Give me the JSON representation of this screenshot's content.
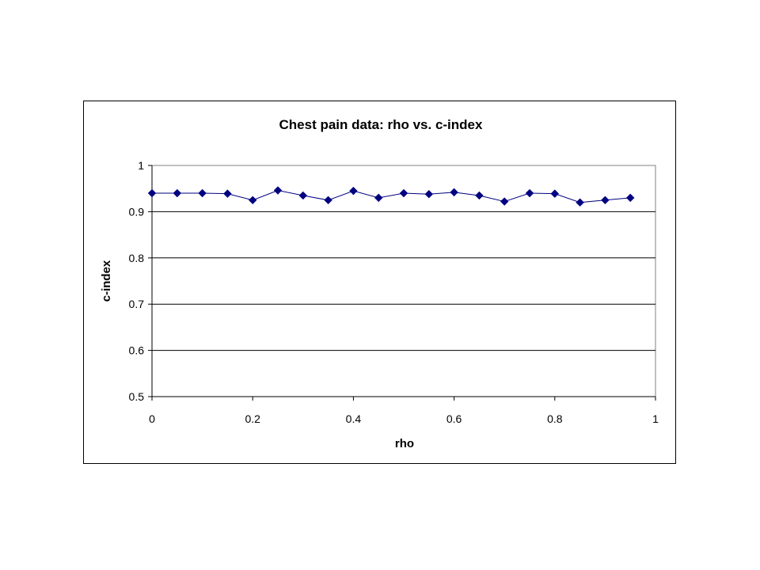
{
  "chart_data": {
    "type": "line",
    "title": "Chest pain data: rho vs. c-index",
    "xlabel": "rho",
    "ylabel": "c-index",
    "xlim": [
      0,
      1
    ],
    "ylim": [
      0.5,
      1
    ],
    "xticks": [
      0,
      0.2,
      0.4,
      0.6,
      0.8,
      1
    ],
    "xtick_labels": [
      "0",
      "0.2",
      "0.4",
      "0.6",
      "0.8",
      "1"
    ],
    "yticks": [
      0.5,
      0.6,
      0.7,
      0.8,
      0.9,
      1
    ],
    "ytick_labels": [
      "0.5",
      "0.6",
      "0.7",
      "0.8",
      "0.9",
      "1"
    ],
    "grid": "horizontal",
    "legend": "none",
    "series": [
      {
        "color": "#000080",
        "marker": "diamond",
        "x": [
          0,
          0.05,
          0.1,
          0.15,
          0.2,
          0.25,
          0.3,
          0.35,
          0.4,
          0.45,
          0.5,
          0.55,
          0.6,
          0.65,
          0.7,
          0.75,
          0.8,
          0.85,
          0.9,
          0.95
        ],
        "y": [
          0.94,
          0.94,
          0.94,
          0.939,
          0.925,
          0.946,
          0.935,
          0.925,
          0.945,
          0.93,
          0.94,
          0.938,
          0.942,
          0.935,
          0.922,
          0.94,
          0.939,
          0.92,
          0.925,
          0.93
        ]
      }
    ]
  }
}
